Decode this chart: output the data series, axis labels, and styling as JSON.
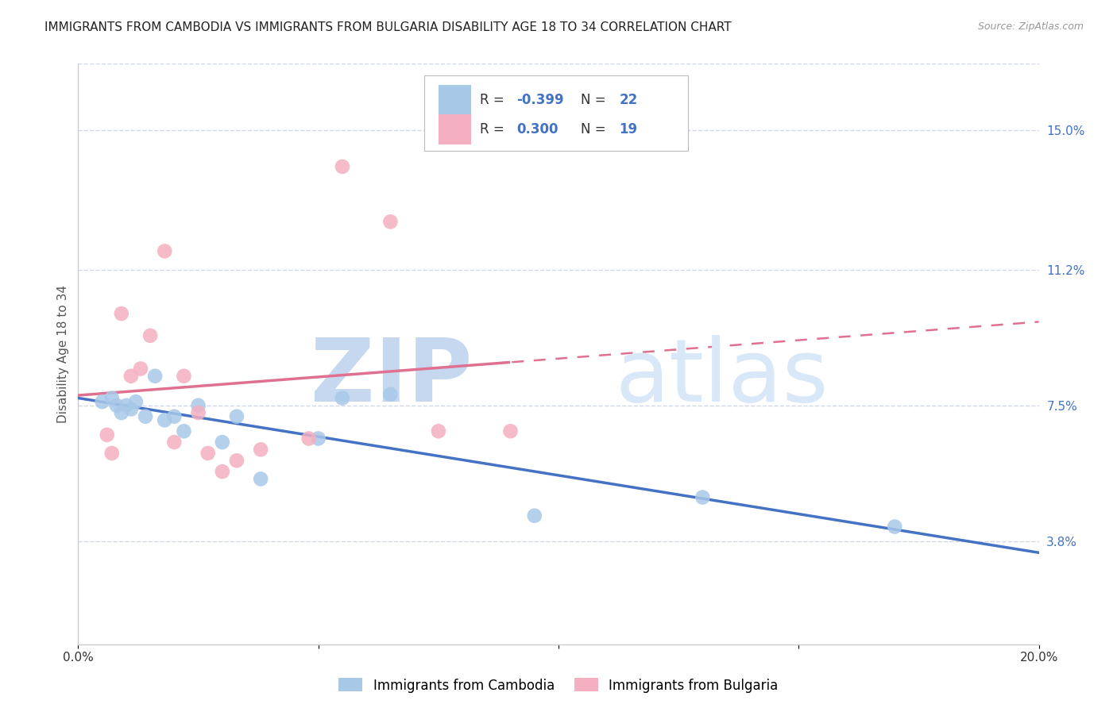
{
  "title": "IMMIGRANTS FROM CAMBODIA VS IMMIGRANTS FROM BULGARIA DISABILITY AGE 18 TO 34 CORRELATION CHART",
  "source": "Source: ZipAtlas.com",
  "ylabel": "Disability Age 18 to 34",
  "xlim": [
    0.0,
    0.2
  ],
  "ylim": [
    0.01,
    0.168
  ],
  "ytick_labels_right": [
    "3.8%",
    "7.5%",
    "11.2%",
    "15.0%"
  ],
  "ytick_vals_right": [
    0.038,
    0.075,
    0.112,
    0.15
  ],
  "cambodia_color": "#a8c8e8",
  "bulgaria_color": "#f4b0c0",
  "cambodia_line_color": "#4472c4",
  "bulgaria_line_color": "#e07090",
  "legend_r_cambodia": "R = -0.399",
  "legend_n_cambodia": "N = 22",
  "legend_r_bulgaria": "R =  0.300",
  "legend_n_bulgaria": "N = 19",
  "legend_label_cambodia": "Immigrants from Cambodia",
  "legend_label_bulgaria": "Immigrants from Bulgaria",
  "watermark_zip": "ZIP",
  "watermark_atlas": "atlas",
  "cambodia_x": [
    0.005,
    0.007,
    0.008,
    0.009,
    0.01,
    0.011,
    0.012,
    0.014,
    0.016,
    0.018,
    0.02,
    0.022,
    0.025,
    0.03,
    0.033,
    0.038,
    0.05,
    0.055,
    0.065,
    0.095,
    0.13,
    0.17
  ],
  "cambodia_y": [
    0.076,
    0.077,
    0.075,
    0.073,
    0.075,
    0.074,
    0.076,
    0.072,
    0.083,
    0.071,
    0.072,
    0.068,
    0.075,
    0.065,
    0.072,
    0.055,
    0.066,
    0.077,
    0.078,
    0.045,
    0.05,
    0.042
  ],
  "bulgaria_x": [
    0.006,
    0.007,
    0.009,
    0.011,
    0.013,
    0.015,
    0.018,
    0.02,
    0.022,
    0.025,
    0.027,
    0.03,
    0.033,
    0.038,
    0.048,
    0.055,
    0.065,
    0.075,
    0.09
  ],
  "bulgaria_y": [
    0.067,
    0.062,
    0.1,
    0.083,
    0.085,
    0.094,
    0.117,
    0.065,
    0.083,
    0.073,
    0.062,
    0.057,
    0.06,
    0.063,
    0.066,
    0.14,
    0.125,
    0.068,
    0.068
  ],
  "title_fontsize": 11,
  "axis_label_fontsize": 11,
  "tick_fontsize": 11,
  "background_color": "#ffffff",
  "grid_color": "#d0d8e8",
  "watermark_color": "#dce8f8"
}
